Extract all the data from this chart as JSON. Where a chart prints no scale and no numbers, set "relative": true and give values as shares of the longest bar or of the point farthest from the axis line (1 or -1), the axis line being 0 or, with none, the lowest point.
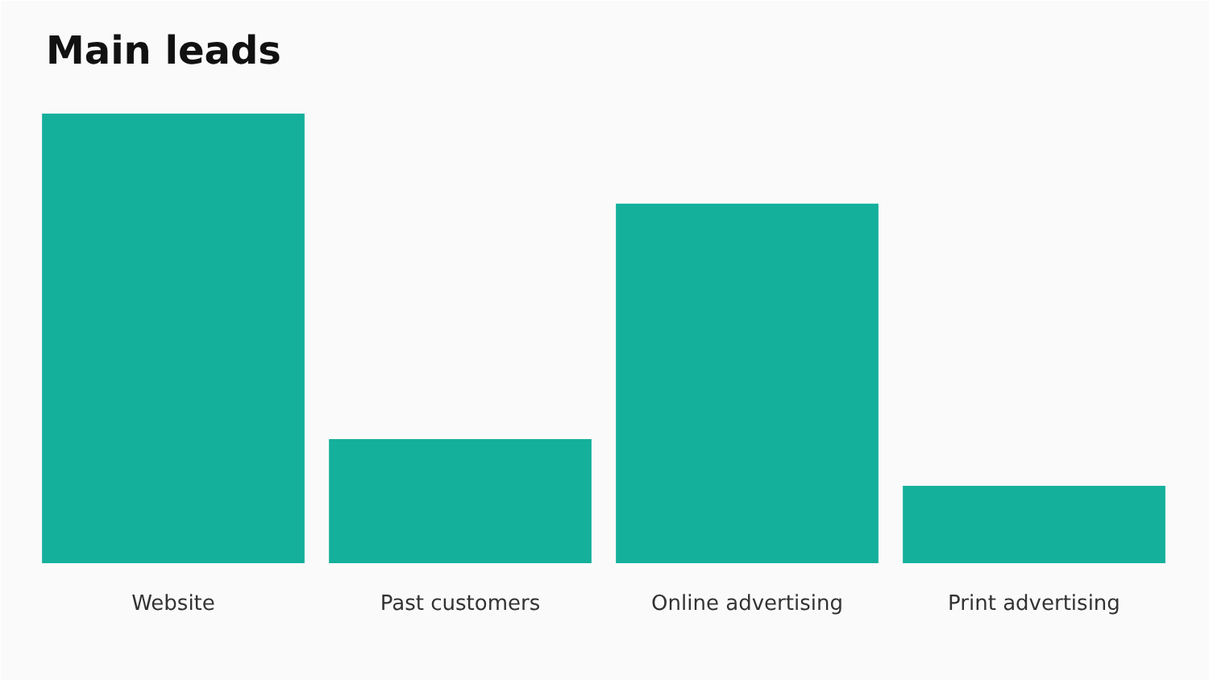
{
  "chart_data": {
    "type": "bar",
    "title": "Main leads",
    "categories": [
      "Website",
      "Past customers",
      "Online advertising",
      "Print advertising"
    ],
    "values": [
      1,
      0.276,
      0.8,
      0.172
    ],
    "color": "#14b09b",
    "relative": true,
    "grid": false
  }
}
